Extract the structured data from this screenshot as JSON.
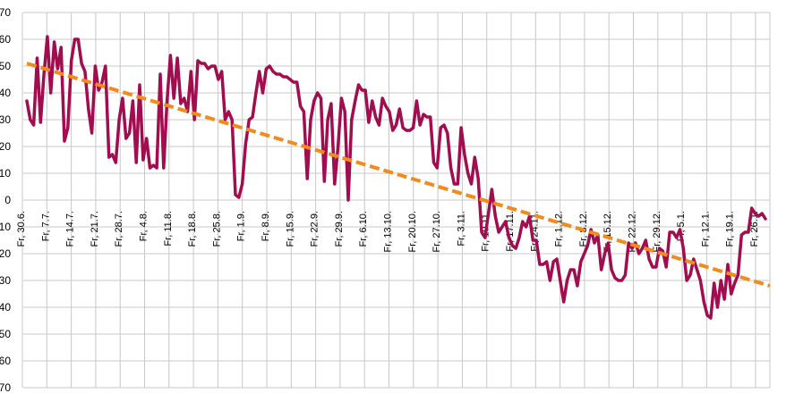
{
  "chart_data": {
    "type": "line",
    "title": "",
    "xlabel": "",
    "ylabel": "",
    "ylim": [
      -70,
      70
    ],
    "grid": true,
    "legend": "none",
    "y_ticks": [
      "70",
      "60",
      "50",
      "40",
      "30",
      "20",
      "10",
      "0",
      "-10",
      "-20",
      "-30",
      "-40",
      "-50",
      "-60",
      "-70"
    ],
    "y_tick_labels": [
      "70",
      "60",
      "50",
      "40",
      "30",
      "20",
      "10",
      "0",
      "10",
      "20",
      "30",
      "40",
      "50",
      "60",
      "70"
    ],
    "x_tick_labels": [
      "Fr, 30.6.",
      "Fr, 7.7.",
      "Fr, 14.7.",
      "Fr, 21.7.",
      "Fr, 28.7.",
      "Fr, 4.8.",
      "Fr, 11.8.",
      "Fr, 18.8.",
      "Fr, 25.8.",
      "Fr, 1.9.",
      "Fr, 8.9.",
      "Fr, 15.9.",
      "Fr, 22.9.",
      "Fr, 29.9.",
      "Fr, 6.10.",
      "Fr, 13.10.",
      "Fr, 20.10.",
      "Fr, 27.10.",
      "Fr, 3.11.",
      "Fr, 10.11.",
      "Fr, 17.11.",
      "Fr, 24.11.",
      "Fr, 1.12.",
      "Fr, 8.12.",
      "Fr, 15.12.",
      "Fr, 22.12.",
      "Fr, 29.12.",
      "Fr, 5.1.",
      "Fr, 12.1.",
      "Fr, 19.1.",
      "Fr, 26.1."
    ],
    "colors": {
      "series": "#a10d4f",
      "trend": "#f28b1e",
      "grid": "#c8c8c8",
      "axis": "#8c8c8c"
    },
    "series": [
      {
        "values": [
          37,
          30,
          28,
          53,
          29,
          47,
          61,
          40,
          59,
          49,
          57,
          22,
          27,
          52,
          60,
          60,
          51,
          48,
          34,
          25,
          50,
          41,
          44,
          50,
          16,
          17,
          14,
          30,
          38,
          23,
          25,
          37,
          14,
          43,
          15,
          23,
          12,
          13,
          12,
          47,
          12,
          37,
          54,
          38,
          53,
          36,
          38,
          33,
          48,
          30,
          52,
          51,
          51,
          49,
          50,
          50,
          45,
          48,
          30,
          33,
          30,
          2,
          1,
          6,
          21,
          30,
          31,
          40,
          48,
          40,
          49,
          50,
          48,
          47,
          47,
          46,
          46,
          45,
          44,
          44,
          35,
          33,
          8,
          30,
          37,
          40,
          38,
          7,
          30,
          36,
          6,
          20,
          38,
          33,
          0,
          30,
          37,
          43,
          41,
          41,
          29,
          37,
          31,
          28,
          38,
          35,
          33,
          26,
          28,
          34,
          27,
          26,
          26,
          27,
          37,
          28,
          32,
          31,
          31,
          14,
          12,
          27,
          28,
          25,
          12,
          6,
          6,
          27,
          17,
          10,
          6,
          16,
          8,
          -12,
          -14,
          -5,
          4,
          -6,
          -12,
          -10,
          -8,
          -14,
          -17,
          -18,
          -14,
          -8,
          -10,
          -6,
          -15,
          -15,
          -24,
          -24,
          -23,
          -30,
          -23,
          -22,
          -30,
          -38,
          -30,
          -26,
          -26,
          -32,
          -23,
          -20,
          -17,
          -11,
          -16,
          -13,
          -26,
          -20,
          -16,
          -26,
          -29,
          -30,
          -30,
          -28,
          -16,
          -18,
          -16,
          -20,
          -18,
          -15,
          -22,
          -25,
          -25,
          -18,
          -19,
          -25,
          -12,
          -12,
          -14,
          -11,
          -18,
          -30,
          -28,
          -22,
          -26,
          -30,
          -38,
          -43,
          -44,
          -31,
          -40,
          -30,
          -37,
          -24,
          -35,
          -31,
          -28,
          -13,
          -12,
          -12,
          -3,
          -5,
          -6,
          -5,
          -7
        ]
      },
      {
        "values": [
          51,
          -32
        ]
      }
    ]
  }
}
